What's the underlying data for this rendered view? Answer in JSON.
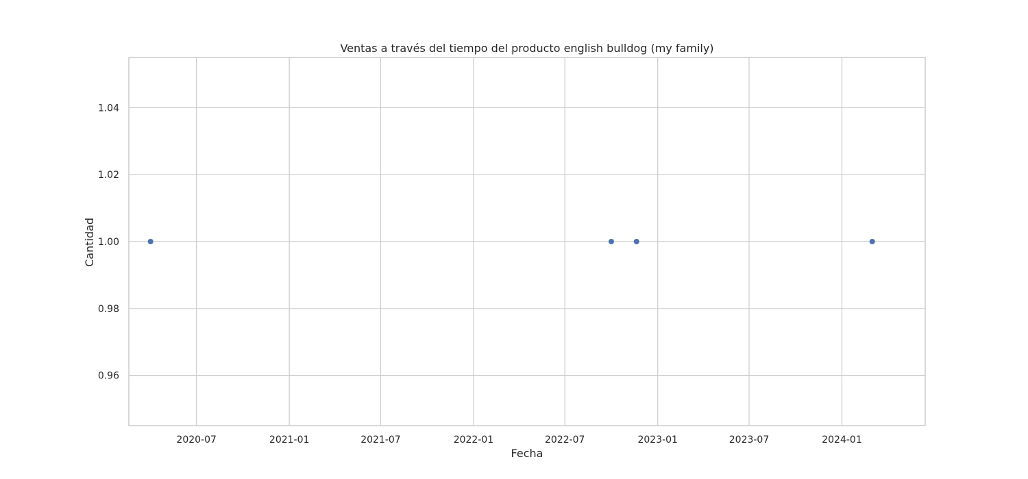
{
  "chart_data": {
    "type": "scatter",
    "title": "Ventas a través del tiempo del producto english bulldog (my family)",
    "xlabel": "Fecha",
    "ylabel": "Cantidad",
    "x_axis_type": "date",
    "xlim": [
      "2020-02-18",
      "2024-06-14"
    ],
    "ylim": [
      0.945,
      1.055
    ],
    "x_ticks": [
      "2020-07",
      "2021-01",
      "2021-07",
      "2022-01",
      "2022-07",
      "2023-01",
      "2023-07",
      "2024-01"
    ],
    "y_ticks": [
      0.96,
      0.98,
      1.0,
      1.02,
      1.04
    ],
    "y_tick_labels": [
      "0.96",
      "0.98",
      "1.00",
      "1.02",
      "1.04"
    ],
    "grid": true,
    "series": [
      {
        "color": "#4c72b0",
        "points": [
          {
            "x": "2020-04-01",
            "y": 1.0
          },
          {
            "x": "2022-10-01",
            "y": 1.0
          },
          {
            "x": "2022-11-20",
            "y": 1.0
          },
          {
            "x": "2024-03-01",
            "y": 1.0
          }
        ]
      }
    ]
  }
}
